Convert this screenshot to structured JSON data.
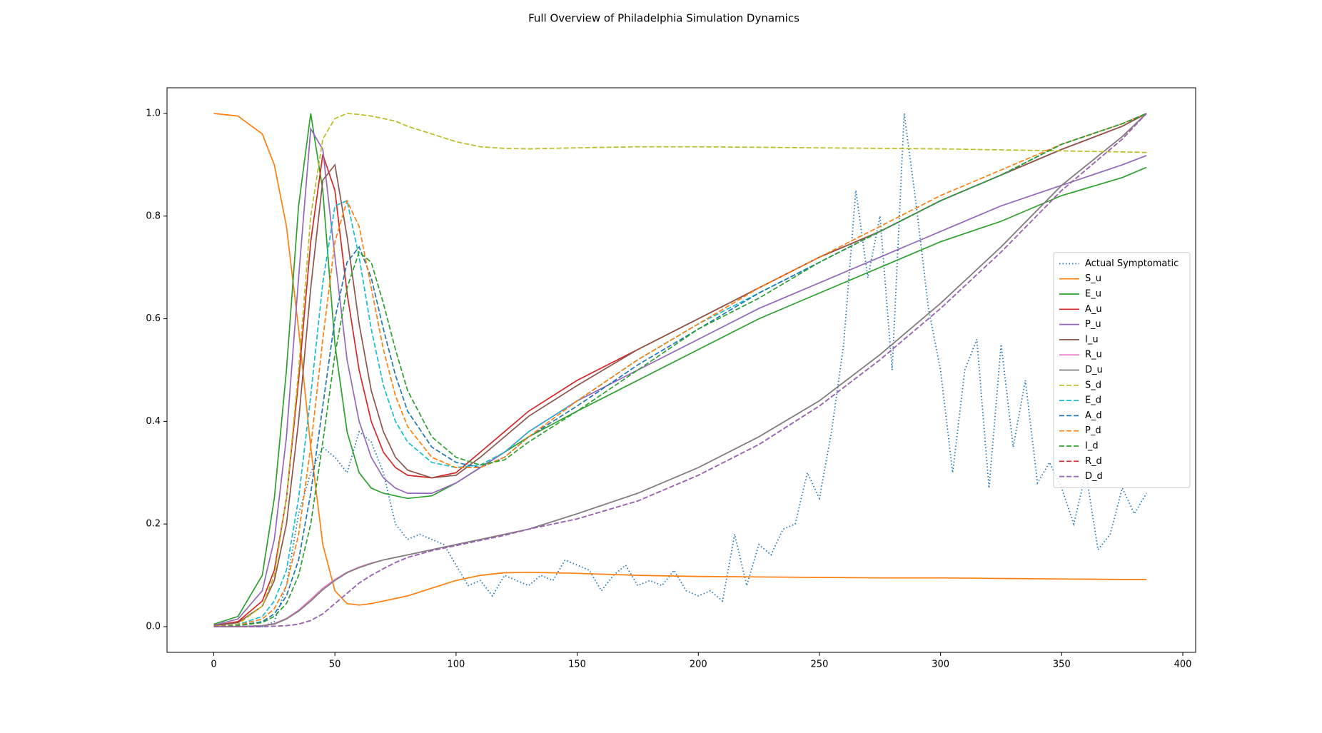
{
  "chart_data": {
    "type": "line",
    "title": "Full Overview of Philadelphia Simulation Dynamics",
    "x": [
      0,
      10,
      20,
      25,
      30,
      35,
      40,
      45,
      50,
      55,
      60,
      65,
      70,
      75,
      80,
      90,
      100,
      110,
      120,
      130,
      150,
      175,
      200,
      225,
      250,
      275,
      300,
      325,
      350,
      375,
      385
    ],
    "series": [
      {
        "name": "Actual Symptomatic",
        "color": "#1f77b4",
        "linestyle": "dotted",
        "x": [
          0,
          5,
          10,
          15,
          20,
          25,
          30,
          35,
          40,
          45,
          50,
          55,
          60,
          65,
          70,
          75,
          80,
          85,
          90,
          95,
          100,
          105,
          110,
          115,
          120,
          125,
          130,
          135,
          140,
          145,
          150,
          155,
          160,
          165,
          170,
          175,
          180,
          185,
          190,
          195,
          200,
          205,
          210,
          215,
          220,
          225,
          230,
          235,
          240,
          245,
          250,
          255,
          260,
          265,
          270,
          275,
          280,
          285,
          290,
          295,
          300,
          305,
          310,
          315,
          320,
          325,
          330,
          335,
          340,
          345,
          350,
          355,
          360,
          365,
          370,
          375,
          380,
          385
        ],
        "values": [
          0,
          0,
          0,
          0,
          0,
          0.01,
          0.08,
          0.22,
          0.3,
          0.35,
          0.33,
          0.3,
          0.38,
          0.36,
          0.3,
          0.2,
          0.17,
          0.18,
          0.17,
          0.16,
          0.12,
          0.08,
          0.09,
          0.06,
          0.1,
          0.09,
          0.08,
          0.1,
          0.09,
          0.13,
          0.12,
          0.11,
          0.07,
          0.1,
          0.12,
          0.08,
          0.09,
          0.08,
          0.11,
          0.07,
          0.06,
          0.07,
          0.05,
          0.18,
          0.08,
          0.16,
          0.14,
          0.19,
          0.2,
          0.3,
          0.25,
          0.38,
          0.55,
          0.85,
          0.68,
          0.8,
          0.5,
          1.0,
          0.82,
          0.62,
          0.5,
          0.3,
          0.5,
          0.56,
          0.27,
          0.55,
          0.35,
          0.48,
          0.28,
          0.32,
          0.27,
          0.2,
          0.3,
          0.15,
          0.18,
          0.27,
          0.22,
          0.26
        ]
      },
      {
        "name": "S_u",
        "color": "#ff7f0e",
        "linestyle": "solid",
        "values": [
          1.0,
          0.995,
          0.96,
          0.9,
          0.78,
          0.58,
          0.35,
          0.16,
          0.07,
          0.045,
          0.042,
          0.045,
          0.05,
          0.055,
          0.06,
          0.075,
          0.09,
          0.1,
          0.105,
          0.106,
          0.104,
          0.1,
          0.098,
          0.097,
          0.096,
          0.095,
          0.095,
          0.094,
          0.093,
          0.092,
          0.092
        ]
      },
      {
        "name": "E_u",
        "color": "#2ca02c",
        "linestyle": "solid",
        "values": [
          0.005,
          0.02,
          0.1,
          0.25,
          0.5,
          0.82,
          1.0,
          0.85,
          0.55,
          0.38,
          0.3,
          0.27,
          0.26,
          0.255,
          0.25,
          0.255,
          0.28,
          0.31,
          0.34,
          0.37,
          0.42,
          0.48,
          0.54,
          0.6,
          0.65,
          0.7,
          0.75,
          0.79,
          0.84,
          0.875,
          0.895
        ]
      },
      {
        "name": "A_u",
        "color": "#d62728",
        "linestyle": "solid",
        "values": [
          0.002,
          0.01,
          0.05,
          0.11,
          0.25,
          0.48,
          0.75,
          0.92,
          0.85,
          0.65,
          0.5,
          0.4,
          0.34,
          0.31,
          0.295,
          0.29,
          0.3,
          0.34,
          0.38,
          0.42,
          0.48,
          0.54,
          0.6,
          0.66,
          0.72,
          0.77,
          0.83,
          0.88,
          0.93,
          0.975,
          1.0
        ]
      },
      {
        "name": "P_u",
        "color": "#9467bd",
        "linestyle": "solid",
        "values": [
          0.003,
          0.015,
          0.07,
          0.17,
          0.37,
          0.68,
          0.97,
          0.93,
          0.72,
          0.52,
          0.4,
          0.33,
          0.29,
          0.27,
          0.26,
          0.26,
          0.28,
          0.31,
          0.34,
          0.38,
          0.44,
          0.5,
          0.56,
          0.62,
          0.67,
          0.72,
          0.77,
          0.82,
          0.86,
          0.9,
          0.918
        ]
      },
      {
        "name": "I_u",
        "color": "#8c564b",
        "linestyle": "solid",
        "values": [
          0.002,
          0.008,
          0.04,
          0.09,
          0.2,
          0.4,
          0.66,
          0.87,
          0.9,
          0.76,
          0.59,
          0.46,
          0.38,
          0.33,
          0.305,
          0.29,
          0.295,
          0.33,
          0.37,
          0.41,
          0.47,
          0.54,
          0.6,
          0.66,
          0.72,
          0.77,
          0.83,
          0.88,
          0.93,
          0.975,
          1.0
        ]
      },
      {
        "name": "R_u",
        "color": "#e377c2",
        "linestyle": "solid",
        "values": [
          0,
          0,
          0.002,
          0.006,
          0.016,
          0.032,
          0.053,
          0.075,
          0.092,
          0.106,
          0.116,
          0.124,
          0.13,
          0.135,
          0.14,
          0.15,
          0.16,
          0.17,
          0.18,
          0.19,
          0.22,
          0.26,
          0.31,
          0.37,
          0.44,
          0.53,
          0.63,
          0.74,
          0.86,
          0.955,
          1.0
        ]
      },
      {
        "name": "D_u",
        "color": "#7f7f7f",
        "linestyle": "solid",
        "values": [
          0,
          0,
          0.002,
          0.005,
          0.015,
          0.03,
          0.05,
          0.072,
          0.09,
          0.105,
          0.115,
          0.123,
          0.13,
          0.135,
          0.14,
          0.15,
          0.16,
          0.17,
          0.18,
          0.19,
          0.22,
          0.26,
          0.31,
          0.37,
          0.44,
          0.53,
          0.63,
          0.74,
          0.86,
          0.955,
          1.0
        ]
      },
      {
        "name": "S_d",
        "color": "#bcbd22",
        "linestyle": "dashed",
        "values": [
          0,
          0.005,
          0.04,
          0.1,
          0.25,
          0.5,
          0.8,
          0.95,
          0.99,
          1.0,
          0.998,
          0.995,
          0.99,
          0.985,
          0.975,
          0.96,
          0.945,
          0.935,
          0.932,
          0.931,
          0.933,
          0.935,
          0.935,
          0.934,
          0.933,
          0.932,
          0.931,
          0.929,
          0.927,
          0.925,
          0.924
        ]
      },
      {
        "name": "E_d",
        "color": "#17becf",
        "linestyle": "dashed",
        "values": [
          0.001,
          0.004,
          0.02,
          0.05,
          0.11,
          0.25,
          0.45,
          0.67,
          0.82,
          0.83,
          0.72,
          0.58,
          0.47,
          0.4,
          0.36,
          0.32,
          0.31,
          0.315,
          0.34,
          0.38,
          0.44,
          0.52,
          0.59,
          0.65,
          0.71,
          0.77,
          0.83,
          0.88,
          0.94,
          0.98,
          1.0
        ]
      },
      {
        "name": "A_d",
        "color": "#1f77b4",
        "linestyle": "dashed",
        "values": [
          0,
          0.002,
          0.01,
          0.025,
          0.06,
          0.13,
          0.26,
          0.43,
          0.6,
          0.71,
          0.74,
          0.68,
          0.58,
          0.49,
          0.42,
          0.35,
          0.32,
          0.31,
          0.33,
          0.37,
          0.43,
          0.51,
          0.58,
          0.65,
          0.71,
          0.77,
          0.83,
          0.88,
          0.94,
          0.98,
          1.0
        ]
      },
      {
        "name": "P_d",
        "color": "#ff7f0e",
        "linestyle": "dashed",
        "values": [
          0.001,
          0.003,
          0.015,
          0.035,
          0.08,
          0.18,
          0.35,
          0.56,
          0.75,
          0.83,
          0.78,
          0.66,
          0.54,
          0.45,
          0.39,
          0.33,
          0.31,
          0.31,
          0.33,
          0.37,
          0.44,
          0.52,
          0.59,
          0.66,
          0.72,
          0.78,
          0.84,
          0.89,
          0.94,
          0.98,
          1.0
        ]
      },
      {
        "name": "I_d",
        "color": "#2ca02c",
        "linestyle": "dashed",
        "values": [
          0,
          0.002,
          0.008,
          0.02,
          0.045,
          0.1,
          0.2,
          0.36,
          0.53,
          0.66,
          0.73,
          0.71,
          0.63,
          0.54,
          0.46,
          0.37,
          0.33,
          0.315,
          0.325,
          0.36,
          0.42,
          0.5,
          0.58,
          0.64,
          0.71,
          0.77,
          0.83,
          0.88,
          0.94,
          0.98,
          1.0
        ]
      },
      {
        "name": "R_d",
        "color": "#d62728",
        "linestyle": "dashed",
        "values": [
          0,
          0,
          0,
          0.001,
          0.002,
          0.005,
          0.012,
          0.025,
          0.045,
          0.065,
          0.085,
          0.1,
          0.113,
          0.125,
          0.135,
          0.148,
          0.158,
          0.168,
          0.178,
          0.19,
          0.21,
          0.245,
          0.295,
          0.355,
          0.43,
          0.52,
          0.62,
          0.73,
          0.85,
          0.95,
          1.0
        ]
      },
      {
        "name": "D_d",
        "color": "#9467bd",
        "linestyle": "dashed",
        "values": [
          0,
          0,
          0,
          0.001,
          0.002,
          0.005,
          0.012,
          0.025,
          0.045,
          0.065,
          0.085,
          0.1,
          0.113,
          0.125,
          0.135,
          0.148,
          0.158,
          0.168,
          0.178,
          0.19,
          0.21,
          0.245,
          0.295,
          0.355,
          0.43,
          0.52,
          0.62,
          0.73,
          0.85,
          0.95,
          1.0
        ]
      }
    ],
    "xlim": [
      -19.3,
      405.3
    ],
    "xticks": [
      0,
      50,
      100,
      150,
      200,
      250,
      300,
      350,
      400
    ],
    "ylim": [
      -0.05,
      1.05
    ],
    "yticks": [
      {
        "value": 0,
        "label": "0.0"
      },
      0.2,
      0.4,
      0.6,
      0.8,
      {
        "value": 1,
        "label": "1.0"
      }
    ],
    "legend": "center right"
  }
}
